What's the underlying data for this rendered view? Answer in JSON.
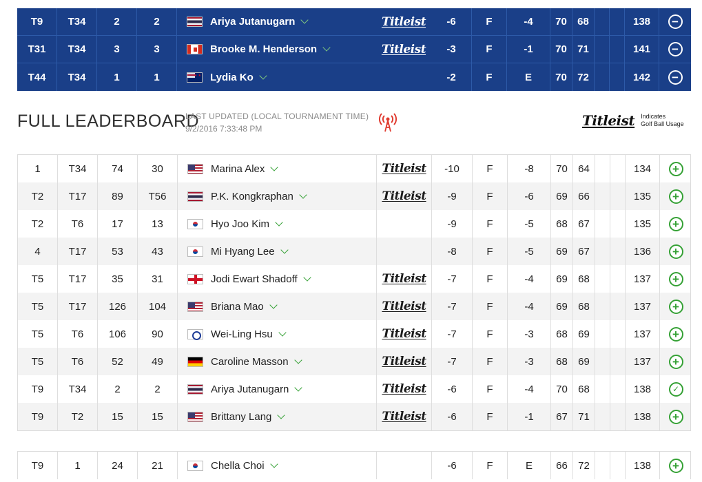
{
  "favorites": [
    {
      "pos": "T9",
      "thru_pos": "T34",
      "r3": "2",
      "r4": "2",
      "flag": "tha",
      "player": "Ariya Jutanugarn",
      "brand": "Titleist",
      "to_par": "-6",
      "thru": "F",
      "today": "-4",
      "rd1": "70",
      "rd2": "68",
      "rd3": "",
      "rd4": "",
      "total": "138",
      "action": "⊖"
    },
    {
      "pos": "T31",
      "thru_pos": "T34",
      "r3": "3",
      "r4": "3",
      "flag": "can",
      "player": "Brooke M. Henderson",
      "brand": "Titleist",
      "to_par": "-3",
      "thru": "F",
      "today": "-1",
      "rd1": "70",
      "rd2": "71",
      "rd3": "",
      "rd4": "",
      "total": "141",
      "action": "⊖"
    },
    {
      "pos": "T44",
      "thru_pos": "T34",
      "r3": "1",
      "r4": "1",
      "flag": "nzl",
      "player": "Lydia Ko",
      "brand": "",
      "to_par": "-2",
      "thru": "F",
      "today": "E",
      "rd1": "70",
      "rd2": "72",
      "rd3": "",
      "rd4": "",
      "total": "142",
      "action": "⊖"
    }
  ],
  "full_leaderboard": {
    "title": "FULL LEADERBOARD",
    "last_updated_label": "LAST UPDATED (LOCAL TOURNAMENT TIME)",
    "last_updated_value": "9/2/2016 7:33:48 PM",
    "brand_legend": {
      "brand": "Titleist",
      "line1": "Indicates",
      "line2": "Golf Ball Usage"
    }
  },
  "rows": [
    {
      "pos": "1",
      "thru_pos": "T34",
      "r3": "74",
      "r4": "30",
      "flag": "usa",
      "player": "Marina Alex",
      "brand": "Titleist",
      "to_par": "-10",
      "thru": "F",
      "today": "-8",
      "rd1": "70",
      "rd2": "64",
      "rd3": "",
      "rd4": "",
      "total": "134",
      "action": "+"
    },
    {
      "pos": "T2",
      "thru_pos": "T17",
      "r3": "89",
      "r4": "T56",
      "flag": "tha",
      "player": "P.K. Kongkraphan",
      "brand": "Titleist",
      "to_par": "-9",
      "thru": "F",
      "today": "-6",
      "rd1": "69",
      "rd2": "66",
      "rd3": "",
      "rd4": "",
      "total": "135",
      "action": "+"
    },
    {
      "pos": "T2",
      "thru_pos": "T6",
      "r3": "17",
      "r4": "13",
      "flag": "kor",
      "player": "Hyo Joo Kim",
      "brand": "",
      "to_par": "-9",
      "thru": "F",
      "today": "-5",
      "rd1": "68",
      "rd2": "67",
      "rd3": "",
      "rd4": "",
      "total": "135",
      "action": "+"
    },
    {
      "pos": "4",
      "thru_pos": "T17",
      "r3": "53",
      "r4": "43",
      "flag": "kor",
      "player": "Mi Hyang Lee",
      "brand": "",
      "to_par": "-8",
      "thru": "F",
      "today": "-5",
      "rd1": "69",
      "rd2": "67",
      "rd3": "",
      "rd4": "",
      "total": "136",
      "action": "+"
    },
    {
      "pos": "T5",
      "thru_pos": "T17",
      "r3": "35",
      "r4": "31",
      "flag": "eng",
      "player": "Jodi Ewart Shadoff",
      "brand": "Titleist",
      "to_par": "-7",
      "thru": "F",
      "today": "-4",
      "rd1": "69",
      "rd2": "68",
      "rd3": "",
      "rd4": "",
      "total": "137",
      "action": "+"
    },
    {
      "pos": "T5",
      "thru_pos": "T17",
      "r3": "126",
      "r4": "104",
      "flag": "usa",
      "player": "Briana Mao",
      "brand": "Titleist",
      "to_par": "-7",
      "thru": "F",
      "today": "-4",
      "rd1": "69",
      "rd2": "68",
      "rd3": "",
      "rd4": "",
      "total": "137",
      "action": "+"
    },
    {
      "pos": "T5",
      "thru_pos": "T6",
      "r3": "106",
      "r4": "90",
      "flag": "tpe",
      "player": "Wei-Ling Hsu",
      "brand": "Titleist",
      "to_par": "-7",
      "thru": "F",
      "today": "-3",
      "rd1": "68",
      "rd2": "69",
      "rd3": "",
      "rd4": "",
      "total": "137",
      "action": "+"
    },
    {
      "pos": "T5",
      "thru_pos": "T6",
      "r3": "52",
      "r4": "49",
      "flag": "ger",
      "player": "Caroline Masson",
      "brand": "Titleist",
      "to_par": "-7",
      "thru": "F",
      "today": "-3",
      "rd1": "68",
      "rd2": "69",
      "rd3": "",
      "rd4": "",
      "total": "137",
      "action": "+"
    },
    {
      "pos": "T9",
      "thru_pos": "T34",
      "r3": "2",
      "r4": "2",
      "flag": "tha",
      "player": "Ariya Jutanugarn",
      "brand": "Titleist",
      "to_par": "-6",
      "thru": "F",
      "today": "-4",
      "rd1": "70",
      "rd2": "68",
      "rd3": "",
      "rd4": "",
      "total": "138",
      "action": "✓"
    },
    {
      "pos": "T9",
      "thru_pos": "T2",
      "r3": "15",
      "r4": "15",
      "flag": "usa",
      "player": "Brittany Lang",
      "brand": "Titleist",
      "to_par": "-6",
      "thru": "F",
      "today": "-1",
      "rd1": "67",
      "rd2": "71",
      "rd3": "",
      "rd4": "",
      "total": "138",
      "action": "+"
    }
  ],
  "rows2": [
    {
      "pos": "T9",
      "thru_pos": "1",
      "r3": "24",
      "r4": "21",
      "flag": "kor",
      "player": "Chella Choi",
      "brand": "",
      "to_par": "-6",
      "thru": "F",
      "today": "E",
      "rd1": "66",
      "rd2": "72",
      "rd3": "",
      "rd4": "",
      "total": "138",
      "action": "+"
    }
  ],
  "colors": {
    "favorites_bg": "#1a3f88",
    "accent_green": "#35a135",
    "alt_row": "#f3f3f3",
    "live_red": "#e03a2f"
  },
  "icons": {
    "expand": "chevron-down-icon",
    "add": "plus-circle-icon",
    "remove": "minus-circle-icon",
    "favorited": "check-circle-icon",
    "live": "broadcast-tower-icon"
  }
}
